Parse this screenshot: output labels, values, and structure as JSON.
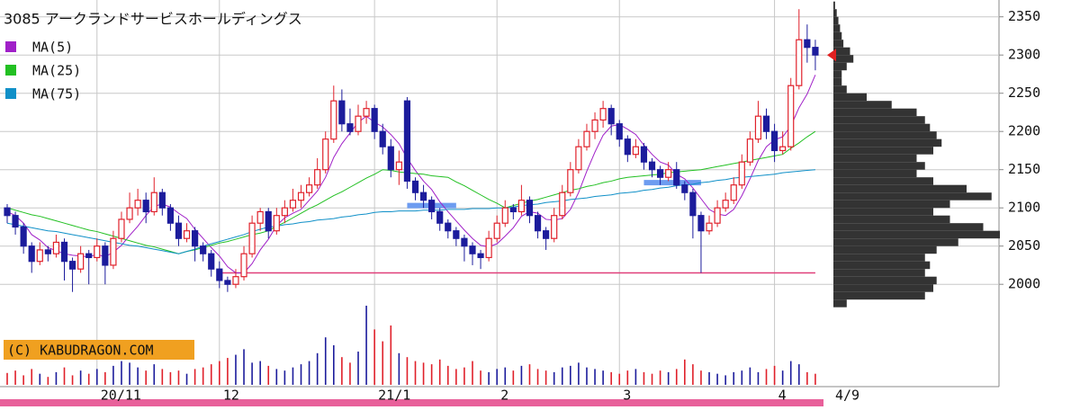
{
  "chart_data": {
    "type": "candlestick",
    "title": "3085 アークランドサービスホールディングス",
    "ylim": [
      1972,
      2372
    ],
    "yticks": [
      2000,
      2050,
      2100,
      2150,
      2200,
      2250,
      2300,
      2350
    ],
    "grid": true,
    "xlim": [
      0,
      99
    ],
    "xticks": [
      {
        "value": 11,
        "label": "20/11"
      },
      {
        "value": 26,
        "label": "12"
      },
      {
        "value": 45,
        "label": "21/1"
      },
      {
        "value": 60,
        "label": "2"
      },
      {
        "value": 75,
        "label": "3"
      },
      {
        "value": 94,
        "label": "4"
      }
    ],
    "last_date": "4/9",
    "up_color": "#e0202a",
    "down_color": "#1c1c9c",
    "candles": {
      "open": [
        2100,
        2090,
        2075,
        2050,
        2030,
        2045,
        2040,
        2055,
        2030,
        2020,
        2040,
        2035,
        2050,
        2025,
        2060,
        2085,
        2100,
        2110,
        2095,
        2120,
        2100,
        2080,
        2060,
        2070,
        2050,
        2040,
        2020,
        2005,
        2000,
        2010,
        2040,
        2080,
        2095,
        2070,
        2090,
        2100,
        2110,
        2120,
        2130,
        2150,
        2190,
        2240,
        2210,
        2200,
        2220,
        2230,
        2200,
        2180,
        2150,
        2240,
        2135,
        2120,
        2110,
        2095,
        2080,
        2070,
        2060,
        2050,
        2040,
        2035,
        2060,
        2080,
        2100,
        2095,
        2110,
        2090,
        2070,
        2060,
        2090,
        2120,
        2150,
        2180,
        2200,
        2215,
        2230,
        2210,
        2190,
        2170,
        2180,
        2160,
        2150,
        2140,
        2150,
        2130,
        2120,
        2090,
        2070,
        2080,
        2100,
        2110,
        2130,
        2160,
        2190,
        2220,
        2200,
        2175,
        2180,
        2260,
        2320,
        2310
      ],
      "high": [
        2105,
        2095,
        2080,
        2055,
        2055,
        2050,
        2065,
        2060,
        2035,
        2050,
        2045,
        2060,
        2055,
        2070,
        2095,
        2120,
        2125,
        2120,
        2140,
        2125,
        2105,
        2090,
        2080,
        2075,
        2055,
        2045,
        2030,
        2010,
        2020,
        2050,
        2090,
        2100,
        2100,
        2100,
        2110,
        2125,
        2130,
        2140,
        2165,
        2200,
        2260,
        2255,
        2230,
        2235,
        2240,
        2235,
        2210,
        2190,
        2175,
        2245,
        2140,
        2130,
        2115,
        2100,
        2085,
        2075,
        2065,
        2055,
        2045,
        2070,
        2090,
        2110,
        2105,
        2130,
        2115,
        2095,
        2075,
        2100,
        2130,
        2160,
        2190,
        2210,
        2225,
        2240,
        2235,
        2215,
        2195,
        2190,
        2185,
        2165,
        2155,
        2160,
        2160,
        2135,
        2125,
        2095,
        2090,
        2110,
        2120,
        2140,
        2170,
        2200,
        2240,
        2230,
        2210,
        2200,
        2270,
        2360,
        2340,
        2320
      ],
      "low": [
        2080,
        2065,
        2040,
        2015,
        2025,
        2030,
        2035,
        2005,
        1990,
        2015,
        2000,
        2030,
        2000,
        2020,
        2055,
        2080,
        2090,
        2080,
        2090,
        2090,
        2070,
        2050,
        2055,
        2030,
        2030,
        2010,
        1995,
        1990,
        1995,
        2005,
        2035,
        2070,
        2060,
        2065,
        2080,
        2095,
        2100,
        2115,
        2125,
        2145,
        2185,
        2200,
        2195,
        2195,
        2210,
        2190,
        2170,
        2140,
        2130,
        2125,
        2110,
        2100,
        2085,
        2070,
        2060,
        2050,
        2030,
        2025,
        2020,
        2030,
        2055,
        2075,
        2085,
        2090,
        2080,
        2060,
        2045,
        2055,
        2085,
        2115,
        2145,
        2175,
        2190,
        2205,
        2195,
        2180,
        2160,
        2165,
        2150,
        2140,
        2130,
        2135,
        2125,
        2110,
        2060,
        2015,
        2065,
        2075,
        2095,
        2105,
        2125,
        2155,
        2185,
        2190,
        2160,
        2170,
        2175,
        2255,
        2290,
        2280
      ],
      "close": [
        2090,
        2075,
        2050,
        2030,
        2045,
        2040,
        2055,
        2030,
        2020,
        2040,
        2035,
        2050,
        2025,
        2060,
        2085,
        2100,
        2110,
        2095,
        2120,
        2100,
        2080,
        2060,
        2070,
        2050,
        2040,
        2020,
        2005,
        2000,
        2010,
        2040,
        2080,
        2095,
        2070,
        2090,
        2100,
        2110,
        2120,
        2130,
        2150,
        2190,
        2240,
        2210,
        2200,
        2220,
        2230,
        2200,
        2180,
        2150,
        2160,
        2135,
        2120,
        2110,
        2095,
        2080,
        2070,
        2060,
        2050,
        2040,
        2035,
        2060,
        2080,
        2100,
        2095,
        2110,
        2090,
        2070,
        2060,
        2090,
        2120,
        2150,
        2180,
        2200,
        2215,
        2230,
        2210,
        2190,
        2170,
        2180,
        2160,
        2150,
        2140,
        2150,
        2130,
        2120,
        2090,
        2070,
        2080,
        2100,
        2110,
        2130,
        2160,
        2190,
        2220,
        2200,
        2175,
        2180,
        2260,
        2320,
        2310,
        2300
      ],
      "volume": [
        15,
        18,
        12,
        20,
        14,
        10,
        16,
        22,
        12,
        18,
        14,
        20,
        16,
        24,
        30,
        28,
        22,
        18,
        26,
        20,
        16,
        18,
        14,
        20,
        22,
        26,
        30,
        34,
        38,
        45,
        28,
        30,
        24,
        20,
        18,
        22,
        26,
        30,
        40,
        60,
        50,
        35,
        28,
        42,
        100,
        70,
        55,
        75,
        40,
        35,
        30,
        28,
        26,
        32,
        24,
        20,
        22,
        30,
        18,
        16,
        20,
        22,
        18,
        24,
        26,
        20,
        18,
        16,
        22,
        24,
        28,
        22,
        20,
        18,
        16,
        14,
        18,
        20,
        16,
        14,
        18,
        16,
        20,
        32,
        26,
        18,
        16,
        14,
        12,
        16,
        18,
        22,
        16,
        20,
        24,
        18,
        30,
        26,
        16,
        14
      ]
    },
    "volume_lim": [
      0,
      100
    ],
    "volume_color": "#1c1c9c",
    "series": [
      {
        "name": "MA(5)",
        "color": "#a020c8",
        "values": [
          2095,
          2090,
          2080,
          2065,
          2058,
          2048,
          2044,
          2040,
          2038,
          2037,
          2036,
          2039,
          2036,
          2042,
          2051,
          2064,
          2076,
          2090,
          2102,
          2105,
          2101,
          2093,
          2086,
          2072,
          2060,
          2048,
          2037,
          2023,
          2015,
          2015,
          2027,
          2045,
          2059,
          2077,
          2087,
          2093,
          2098,
          2110,
          2122,
          2140,
          2166,
          2184,
          2198,
          2212,
          2220,
          2212,
          2206,
          2196,
          2184,
          2165,
          2149,
          2135,
          2124,
          2108,
          2095,
          2083,
          2071,
          2060,
          2051,
          2049,
          2053,
          2063,
          2074,
          2089,
          2095,
          2093,
          2085,
          2084,
          2086,
          2098,
          2120,
          2148,
          2173,
          2195,
          2207,
          2209,
          2203,
          2196,
          2182,
          2170,
          2160,
          2156,
          2144,
          2138,
          2126,
          2112,
          2098,
          2092,
          2090,
          2098,
          2116,
          2138,
          2162,
          2180,
          2189,
          2193,
          2207,
          2231,
          2249,
          2274
        ]
      },
      {
        "name": "MA(25)",
        "color": "#22c022",
        "values": [
          2100,
          2097,
          2094,
          2091,
          2089,
          2086,
          2083,
          2080,
          2077,
          2074,
          2071,
          2069,
          2066,
          2063,
          2060,
          2057,
          2054,
          2051,
          2049,
          2046,
          2043,
          2040,
          2043,
          2045,
          2048,
          2051,
          2054,
          2056,
          2059,
          2062,
          2065,
          2067,
          2070,
          2076,
          2081,
          2087,
          2093,
          2099,
          2104,
          2110,
          2116,
          2121,
          2127,
          2133,
          2139,
          2144,
          2150,
          2149,
          2147,
          2146,
          2145,
          2144,
          2142,
          2141,
          2140,
          2134,
          2129,
          2123,
          2117,
          2111,
          2106,
          2100,
          2103,
          2106,
          2109,
          2111,
          2114,
          2117,
          2120,
          2123,
          2125,
          2128,
          2130,
          2133,
          2135,
          2138,
          2140,
          2141,
          2142,
          2143,
          2144,
          2146,
          2147,
          2148,
          2149,
          2150,
          2152,
          2154,
          2156,
          2158,
          2160,
          2162,
          2164,
          2166,
          2168,
          2170,
          2178,
          2185,
          2193,
          2200
        ]
      },
      {
        "name": "MA(75)",
        "color": "#1090c8",
        "values": [
          2080,
          2078,
          2076,
          2074,
          2072,
          2070,
          2069,
          2067,
          2065,
          2063,
          2061,
          2059,
          2057,
          2055,
          2053,
          2051,
          2050,
          2048,
          2046,
          2044,
          2042,
          2040,
          2043,
          2046,
          2050,
          2053,
          2056,
          2059,
          2062,
          2065,
          2069,
          2072,
          2075,
          2076,
          2078,
          2079,
          2081,
          2082,
          2084,
          2085,
          2086,
          2088,
          2089,
          2091,
          2092,
          2094,
          2095,
          2095,
          2096,
          2096,
          2096,
          2097,
          2097,
          2097,
          2098,
          2098,
          2098,
          2099,
          2099,
          2099,
          2100,
          2100,
          2101,
          2103,
          2104,
          2105,
          2107,
          2108,
          2109,
          2111,
          2112,
          2113,
          2115,
          2116,
          2117,
          2119,
          2120,
          2121,
          2123,
          2124,
          2126,
          2127,
          2129,
          2130,
          2131,
          2133,
          2134,
          2136,
          2137,
          2139,
          2140,
          2141,
          2142,
          2143,
          2144,
          2146,
          2147,
          2148,
          2149,
          2150
        ]
      }
    ],
    "levels": [
      {
        "price": 2015,
        "from": 26,
        "to": 99,
        "color": "#e0407a"
      },
      {
        "price": 2103,
        "from": 49,
        "to": 55,
        "color": "#6d9cf0"
      },
      {
        "price": 2133,
        "from": 78,
        "to": 85,
        "color": "#6d9cf0"
      }
    ],
    "last_price": 2300,
    "marker_color": "#e02020",
    "volume_profile": {
      "color": "#333333",
      "lim": [
        0,
        100
      ],
      "prices": [
        1975,
        1985,
        1995,
        2005,
        2015,
        2025,
        2035,
        2045,
        2055,
        2065,
        2075,
        2085,
        2095,
        2105,
        2115,
        2125,
        2135,
        2145,
        2155,
        2165,
        2175,
        2185,
        2195,
        2205,
        2215,
        2225,
        2235,
        2245,
        2255,
        2265,
        2275,
        2285,
        2295,
        2305,
        2315,
        2325,
        2335,
        2345,
        2355,
        2365
      ],
      "values": [
        8,
        55,
        60,
        62,
        55,
        58,
        55,
        62,
        75,
        100,
        90,
        70,
        60,
        70,
        95,
        80,
        60,
        50,
        55,
        50,
        60,
        65,
        62,
        58,
        55,
        50,
        35,
        20,
        8,
        5,
        5,
        8,
        12,
        10,
        6,
        5,
        4,
        3,
        2,
        1
      ]
    },
    "watermark": "(C) KABUDRAGON.COM"
  }
}
